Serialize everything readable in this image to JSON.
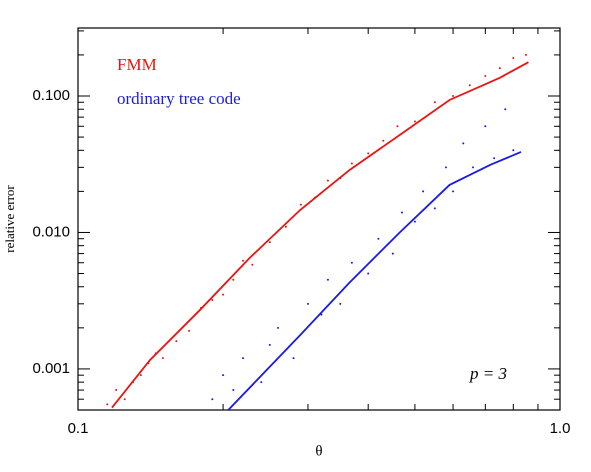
{
  "chart_data": {
    "type": "line",
    "x_label": "θ",
    "y_label": "relative error",
    "annotation": "p = 3",
    "log_x": true,
    "log_y": true,
    "xlim": [
      0.1,
      1
    ],
    "ylim": [
      0.0005,
      0.315
    ],
    "xticks": [
      0.1,
      {
        "value": 1,
        "label": "1.0"
      }
    ],
    "yticks": [
      {
        "value": 0.001,
        "label": "0.001"
      },
      {
        "value": 0.01,
        "label": "0.010"
      },
      {
        "value": 0.1,
        "label": "0.100"
      }
    ],
    "xminorticks": [
      0.2,
      0.3,
      0.4,
      0.5,
      0.6,
      0.7,
      0.8,
      0.9
    ],
    "yminorticks": [
      0.0006,
      0.0007,
      0.0008,
      0.0009,
      0.002,
      0.003,
      0.004,
      0.005,
      0.006,
      0.007,
      0.008,
      0.009,
      0.02,
      0.03,
      0.04,
      0.05,
      0.06,
      0.07,
      0.08,
      0.09,
      0.2,
      0.3
    ],
    "series": [
      {
        "name": "FMM",
        "color": "#e8150f",
        "x": [
          0.1176,
          0.141,
          0.179,
          0.227,
          0.289,
          0.366,
          0.465,
          0.59,
          0.75,
          0.86
        ],
        "values": [
          0.00052,
          0.00116,
          0.0027,
          0.0065,
          0.0146,
          0.0287,
          0.0518,
          0.0935,
          0.136,
          0.177
        ]
      },
      {
        "name": "ordinary tree code",
        "color": "#1a1ae6",
        "x": [
          0.205,
          0.289,
          0.366,
          0.465,
          0.59,
          0.717,
          0.83
        ],
        "values": [
          0.0005,
          0.00177,
          0.0043,
          0.01,
          0.0223,
          0.0313,
          0.0389
        ]
      }
    ],
    "clouds": [
      {
        "color": "#e8150f",
        "x": [
          0.115,
          0.12,
          0.125,
          0.13,
          0.135,
          0.14,
          0.145,
          0.15,
          0.16,
          0.17,
          0.18,
          0.19,
          0.2,
          0.21,
          0.22,
          0.23,
          0.25,
          0.27,
          0.29,
          0.31,
          0.33,
          0.35,
          0.37,
          0.4,
          0.43,
          0.46,
          0.5,
          0.55,
          0.6,
          0.65,
          0.7,
          0.75,
          0.8,
          0.85
        ],
        "values": [
          0.00055,
          0.0007,
          0.0006,
          0.0008,
          0.0009,
          0.0011,
          0.0013,
          0.0012,
          0.0016,
          0.0019,
          0.0028,
          0.0032,
          0.0035,
          0.0045,
          0.0062,
          0.0058,
          0.0085,
          0.011,
          0.016,
          0.018,
          0.024,
          0.025,
          0.032,
          0.038,
          0.047,
          0.06,
          0.065,
          0.09,
          0.1,
          0.12,
          0.14,
          0.16,
          0.19,
          0.2
        ]
      },
      {
        "color": "#1a1ae6",
        "x": [
          0.19,
          0.2,
          0.21,
          0.22,
          0.24,
          0.25,
          0.26,
          0.28,
          0.3,
          0.32,
          0.33,
          0.35,
          0.37,
          0.4,
          0.42,
          0.45,
          0.47,
          0.5,
          0.52,
          0.55,
          0.58,
          0.6,
          0.63,
          0.66,
          0.7,
          0.73,
          0.77,
          0.8
        ],
        "values": [
          0.0006,
          0.0009,
          0.0007,
          0.0012,
          0.0008,
          0.0015,
          0.002,
          0.0012,
          0.003,
          0.0025,
          0.0045,
          0.003,
          0.006,
          0.005,
          0.009,
          0.007,
          0.014,
          0.012,
          0.02,
          0.015,
          0.03,
          0.02,
          0.045,
          0.03,
          0.06,
          0.035,
          0.08,
          0.04
        ]
      }
    ]
  }
}
